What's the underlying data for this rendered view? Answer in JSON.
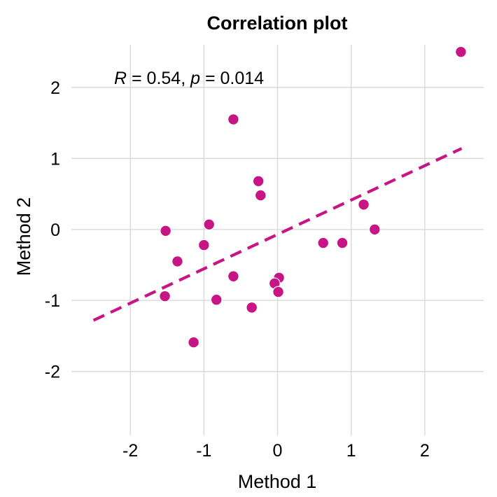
{
  "chart_data": {
    "type": "scatter",
    "title": "Correlation plot",
    "xlabel": "Method 1",
    "ylabel": "Method 2",
    "xlim": [
      -2.8,
      2.8
    ],
    "ylim": [
      -2.9,
      2.6
    ],
    "xticks": [
      -2,
      -1,
      0,
      1,
      2
    ],
    "xtick_labels": [
      "-2",
      "-1",
      "0",
      "1",
      "2"
    ],
    "yticks": [
      -2,
      -1,
      0,
      1,
      2
    ],
    "ytick_labels": [
      "-2",
      "-1",
      "0",
      "1",
      "2"
    ],
    "grid": true,
    "point_color": "#C71585",
    "line_color": "#C71585",
    "points": [
      {
        "x": 2.49,
        "y": 2.5
      },
      {
        "x": -0.6,
        "y": 1.55
      },
      {
        "x": -0.26,
        "y": 0.68
      },
      {
        "x": -0.23,
        "y": 0.48
      },
      {
        "x": 1.17,
        "y": 0.35
      },
      {
        "x": -0.93,
        "y": 0.07
      },
      {
        "x": -1.52,
        "y": -0.02
      },
      {
        "x": 1.32,
        "y": 0.0
      },
      {
        "x": 0.62,
        "y": -0.19
      },
      {
        "x": 0.88,
        "y": -0.19
      },
      {
        "x": -1.0,
        "y": -0.22
      },
      {
        "x": -1.36,
        "y": -0.45
      },
      {
        "x": -0.6,
        "y": -0.66
      },
      {
        "x": 0.02,
        "y": -0.68
      },
      {
        "x": -0.04,
        "y": -0.76
      },
      {
        "x": 0.01,
        "y": -0.88
      },
      {
        "x": -1.53,
        "y": -0.94
      },
      {
        "x": -0.83,
        "y": -0.99
      },
      {
        "x": -0.35,
        "y": -1.1
      },
      {
        "x": -1.14,
        "y": -1.59
      }
    ],
    "regression_line": {
      "x": [
        -2.5,
        2.5
      ],
      "y": [
        -1.28,
        1.14
      ],
      "style": "dashed"
    },
    "annotation": {
      "r_symbol": "R",
      "r_text": " = 0.54, ",
      "p_symbol": "p",
      "p_text": " = 0.014"
    }
  }
}
